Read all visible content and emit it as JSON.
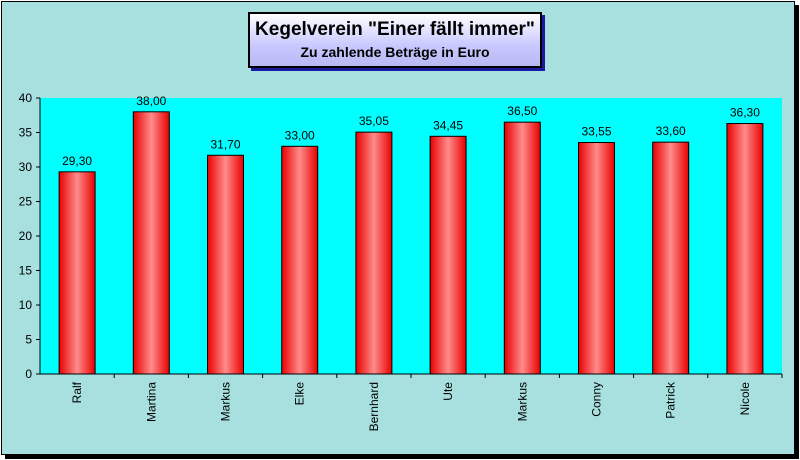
{
  "chart_data": {
    "type": "bar",
    "title": "Kegelverein \"Einer fällt immer\"",
    "subtitle": "Zu zahlende Beträge in Euro",
    "categories": [
      "Ralf",
      "Martina",
      "Markus",
      "Elke",
      "Bernhard",
      "Ute",
      "Markus",
      "Conny",
      "Patrick",
      "Nicole"
    ],
    "values": [
      29.3,
      38.0,
      31.7,
      33.0,
      35.05,
      34.45,
      36.5,
      33.55,
      33.6,
      36.3
    ],
    "data_labels": [
      "29,30",
      "38,00",
      "31,70",
      "33,00",
      "35,05",
      "34,45",
      "36,50",
      "33,55",
      "33,60",
      "36,30"
    ],
    "ylim": [
      0,
      40
    ],
    "yticks": [
      0,
      5,
      10,
      15,
      20,
      25,
      30,
      35,
      40
    ],
    "xlabel": "",
    "ylabel": "",
    "grid": false,
    "legend": "none",
    "colors": {
      "chart_background": "#a8e0e0",
      "plot_background": "#00ffff",
      "bar_edge": "#ff0000",
      "bar_center": "#ff8a8a",
      "title_box": "#c9c9ff"
    }
  }
}
